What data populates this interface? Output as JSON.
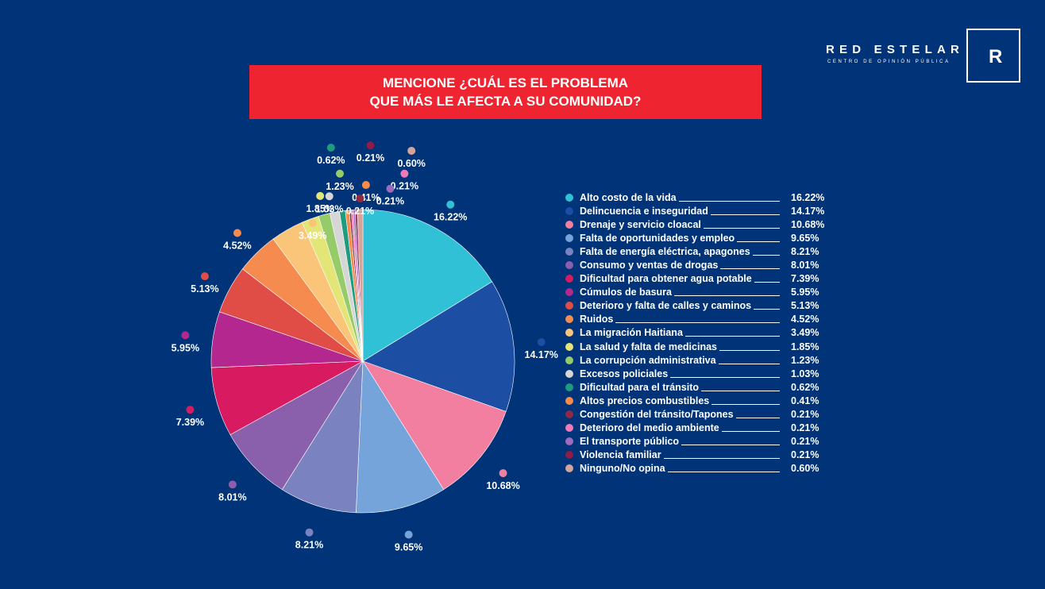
{
  "brand": {
    "name": "RED ESTELAR",
    "subtitle": "CENTRO DE OPINIÓN PÚBLICA",
    "logo_letter": "R"
  },
  "title": {
    "line1": "MENCIONE ¿CUÁL ES EL PROBLEMA",
    "line2": "QUE MÁS LE AFECTA A SU COMUNIDAD?"
  },
  "colors": {
    "background": "#003378",
    "title_bar": "#ee2430",
    "text": "#ffffff"
  },
  "chart_data": {
    "type": "pie",
    "title": "MENCIONE ¿CUÁL ES EL PROBLEMA QUE MÁS LE AFECTA A SU COMUNIDAD?",
    "unit": "%",
    "legend_position": "right",
    "slices": [
      {
        "label": "Alto costo de la vida",
        "value": 16.22,
        "display": "16.22%",
        "color": "#30c1d7"
      },
      {
        "label": "Delincuencia e inseguridad",
        "value": 14.17,
        "display": "14.17%",
        "color": "#1c4ea4"
      },
      {
        "label": "Drenaje y servicio cloacal",
        "value": 10.68,
        "display": "10.68%",
        "color": "#f27ea0"
      },
      {
        "label": "Falta de oportunidades y empleo",
        "value": 9.65,
        "display": "9.65%",
        "color": "#74a4da"
      },
      {
        "label": "Falta de energía eléctrica, apagones",
        "value": 8.21,
        "display": "8.21%",
        "color": "#7a83c0"
      },
      {
        "label": "Consumo y ventas de drogas",
        "value": 8.01,
        "display": "8.01%",
        "color": "#8a5fac"
      },
      {
        "label": "Dificultad para obtener agua potable",
        "value": 7.39,
        "display": "7.39%",
        "color": "#d81b60"
      },
      {
        "label": "Cúmulos de basura",
        "value": 5.95,
        "display": "5.95%",
        "color": "#b3278f"
      },
      {
        "label": "Deterioro y falta de calles y caminos",
        "value": 5.13,
        "display": "5.13%",
        "color": "#e04c46"
      },
      {
        "label": "Ruidos",
        "value": 4.52,
        "display": "4.52%",
        "color": "#f58b4f"
      },
      {
        "label": "La migración Haitiana",
        "value": 3.49,
        "display": "3.49%",
        "color": "#fbc579"
      },
      {
        "label": "La salud y falta de medicinas",
        "value": 1.85,
        "display": "1.85%",
        "color": "#e4e577"
      },
      {
        "label": "La corrupción administrativa",
        "value": 1.23,
        "display": "1.23%",
        "color": "#96cb69"
      },
      {
        "label": "Excesos policiales",
        "value": 1.03,
        "display": "1.03%",
        "color": "#d7d6d6"
      },
      {
        "label": "Dificultad para el tránsito",
        "value": 0.62,
        "display": "0.62%",
        "color": "#1f9b80"
      },
      {
        "label": "Altos precios combustibles",
        "value": 0.41,
        "display": "0.41%",
        "color": "#f58c4e"
      },
      {
        "label": "Congestión del tránsito/Tapones",
        "value": 0.21,
        "display": "0.21%",
        "color": "#8e2a45"
      },
      {
        "label": "Deterioro del medio ambiente",
        "value": 0.21,
        "display": "0.21%",
        "color": "#ef7ab7"
      },
      {
        "label": "El transporte público",
        "value": 0.21,
        "display": "0.21%",
        "color": "#9d6bbd"
      },
      {
        "label": "Violencia familiar",
        "value": 0.21,
        "display": "0.21%",
        "color": "#8f1b49"
      },
      {
        "label": "Ninguno/No opina",
        "value": 0.6,
        "display": "0.60%",
        "color": "#d6a39a"
      }
    ],
    "outer_label_order": [
      "Alto costo de la vida",
      "Delincuencia e inseguridad",
      "Drenaje y servicio cloacal",
      "Falta de oportunidades y empleo",
      "Falta de energía eléctrica, apagones",
      "Consumo y ventas de drogas",
      "Cúmulos de basura",
      "Dificultad para obtener agua potable",
      "Deterioro y falta de calles y caminos",
      "Ruidos",
      "La migración Haitiana",
      "La salud y falta de medicinas",
      "Excesos policiales",
      "La corrupción administrativa",
      "Dificultad para el tránsito",
      "Altos precios combustibles",
      "Congestión del tránsito/Tapones",
      "Deterioro del medio ambiente",
      "El transporte público",
      "Violencia familiar",
      "Ninguno/No opina"
    ]
  }
}
